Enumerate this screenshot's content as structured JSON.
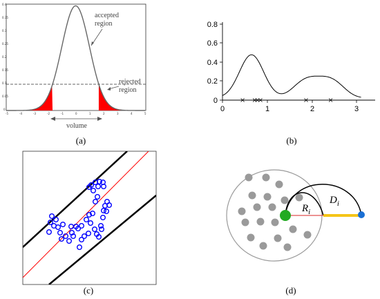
{
  "captions": {
    "a": "(a)",
    "b": "(b)",
    "c": "(c)",
    "d": "(d)"
  },
  "panel_a": {
    "y_ticks": [
      "0.4",
      "0.35",
      "0.3",
      "0.25",
      "0.2",
      "0.15",
      "0.1",
      "0.05",
      "0"
    ],
    "x_ticks": [
      "-5",
      "-4",
      "-3",
      "-2",
      "-1",
      "0",
      "1",
      "2",
      "3",
      "4",
      "5"
    ],
    "accepted_label_1": "accepted",
    "accepted_label_2": "region",
    "rejected_label_1": "rejected",
    "rejected_label_2": "region",
    "volume_label": "volume",
    "threshold": 0.1,
    "colors": {
      "curve": "#666666",
      "tail": "#ff0000",
      "dash": "#333333"
    }
  },
  "panel_b": {
    "y_ticks": [
      "0.8",
      "0.6",
      "0.4",
      "0.2",
      "0"
    ],
    "x_ticks": [
      "0",
      "1",
      "2",
      "3"
    ],
    "sample_points": [
      0.45,
      0.72,
      0.78,
      0.85,
      1.87,
      2.42
    ],
    "colors": {
      "curve": "#000000"
    }
  },
  "panel_c": {
    "colors": {
      "point": "#0000ff",
      "fit_line": "#ff0000",
      "band_line": "#000000"
    }
  },
  "panel_d": {
    "radius_label_main": "R",
    "radius_label_sub": "i",
    "distance_label_main": "D",
    "distance_label_sub": "i",
    "colors": {
      "center": "#22aa22",
      "query": "#1a6fd4",
      "distance": "#f5c518",
      "radius": "#e05050",
      "neighbors": "#9a9a9a",
      "circle": "#999999"
    }
  }
}
